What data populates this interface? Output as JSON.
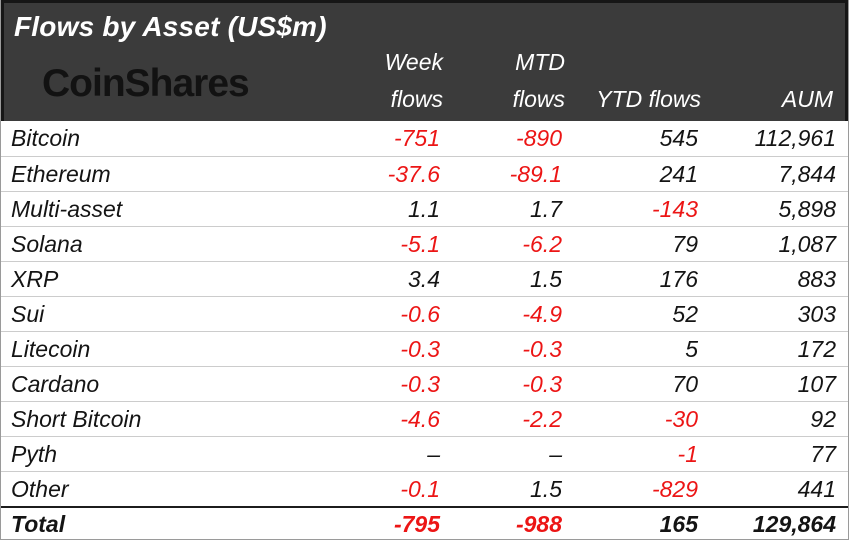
{
  "title": "Flows by Asset (US$m)",
  "logo": "CoinShares",
  "columns": {
    "week": {
      "line1": "Week",
      "line2": "flows"
    },
    "mtd": {
      "line1": "MTD",
      "line2": "flows"
    },
    "ytd": {
      "label": "YTD flows"
    },
    "aum": {
      "label": "AUM"
    }
  },
  "rows": [
    {
      "asset": "Bitcoin",
      "week": "-751",
      "mtd": "-890",
      "ytd": "545",
      "aum": "112,961"
    },
    {
      "asset": "Ethereum",
      "week": "-37.6",
      "mtd": "-89.1",
      "ytd": "241",
      "aum": "7,844"
    },
    {
      "asset": "Multi-asset",
      "week": "1.1",
      "mtd": "1.7",
      "ytd": "-143",
      "aum": "5,898"
    },
    {
      "asset": "Solana",
      "week": "-5.1",
      "mtd": "-6.2",
      "ytd": "79",
      "aum": "1,087"
    },
    {
      "asset": "XRP",
      "week": "3.4",
      "mtd": "1.5",
      "ytd": "176",
      "aum": "883"
    },
    {
      "asset": "Sui",
      "week": "-0.6",
      "mtd": "-4.9",
      "ytd": "52",
      "aum": "303"
    },
    {
      "asset": "Litecoin",
      "week": "-0.3",
      "mtd": "-0.3",
      "ytd": "5",
      "aum": "172"
    },
    {
      "asset": "Cardano",
      "week": "-0.3",
      "mtd": "-0.3",
      "ytd": "70",
      "aum": "107"
    },
    {
      "asset": "Short Bitcoin",
      "week": "-4.6",
      "mtd": "-2.2",
      "ytd": "-30",
      "aum": "92"
    },
    {
      "asset": "Pyth",
      "week": "–",
      "mtd": "–",
      "ytd": "-1",
      "aum": "77"
    },
    {
      "asset": "Other",
      "week": "-0.1",
      "mtd": "1.5",
      "ytd": "-829",
      "aum": "441"
    }
  ],
  "total": {
    "asset": "Total",
    "week": "-795",
    "mtd": "-988",
    "ytd": "165",
    "aum": "129,864"
  },
  "colors": {
    "negative": "#ec1515",
    "text": "#141414",
    "header_bg": "#3b3b3b",
    "header_text": "#ffffff",
    "row_divider": "#cccccc",
    "total_divider": "#1c1c1c"
  },
  "chart_data": {
    "type": "table",
    "title": "Flows by Asset (US$m)",
    "categories": [
      "Bitcoin",
      "Ethereum",
      "Multi-asset",
      "Solana",
      "XRP",
      "Sui",
      "Litecoin",
      "Cardano",
      "Short Bitcoin",
      "Pyth",
      "Other"
    ],
    "series": [
      {
        "name": "Week flows",
        "values": [
          -751,
          -37.6,
          1.1,
          -5.1,
          3.4,
          -0.6,
          -0.3,
          -0.3,
          -4.6,
          null,
          -0.1
        ],
        "total": -795
      },
      {
        "name": "MTD flows",
        "values": [
          -890,
          -89.1,
          1.7,
          -6.2,
          1.5,
          -4.9,
          -0.3,
          -0.3,
          -2.2,
          null,
          1.5
        ],
        "total": -988
      },
      {
        "name": "YTD flows",
        "values": [
          545,
          241,
          -143,
          79,
          176,
          52,
          5,
          70,
          -30,
          -1,
          -829
        ],
        "total": 165
      },
      {
        "name": "AUM",
        "values": [
          112961,
          7844,
          5898,
          1087,
          883,
          303,
          172,
          107,
          92,
          77,
          441
        ],
        "total": 129864
      }
    ]
  }
}
